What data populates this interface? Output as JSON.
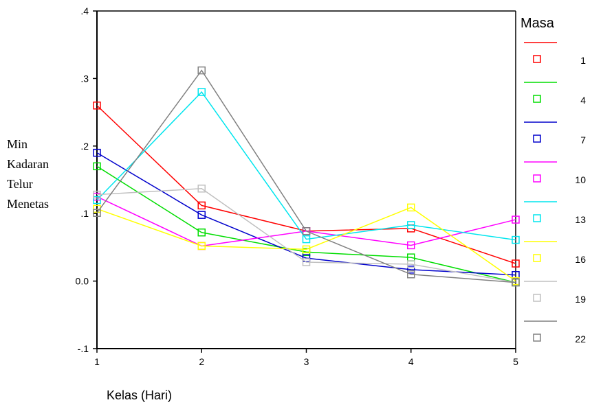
{
  "chart_data": {
    "type": "line",
    "title": "",
    "xlabel": "Kelas  (Hari)",
    "ylabel_lines": [
      "Min",
      "Kadaran",
      "Telur",
      "Menetas"
    ],
    "x": [
      1,
      2,
      3,
      4,
      5
    ],
    "x_ticks": [
      "1",
      "2",
      "3",
      "4",
      "5"
    ],
    "ylim": [
      -0.1,
      0.4
    ],
    "y_ticks": [
      {
        "value": 0.4,
        "label": ".4"
      },
      {
        "value": 0.3,
        "label": ".3"
      },
      {
        "value": 0.2,
        "label": ".2"
      },
      {
        "value": 0.1,
        "label": ".1"
      },
      {
        "value": 0.0,
        "label": "0.0"
      },
      {
        "value": -0.1,
        "label": "-.1"
      }
    ],
    "grid": false,
    "legend": {
      "title": "Masa",
      "position": "right"
    },
    "series": [
      {
        "name": "1",
        "color": "#ff0000",
        "values": [
          0.26,
          0.112,
          0.074,
          0.078,
          0.026
        ]
      },
      {
        "name": "4",
        "color": "#00dd00",
        "values": [
          0.17,
          0.072,
          0.043,
          0.035,
          -0.002
        ]
      },
      {
        "name": "7",
        "color": "#0000cc",
        "values": [
          0.19,
          0.098,
          0.034,
          0.017,
          0.009
        ]
      },
      {
        "name": "10",
        "color": "#ff00ff",
        "values": [
          0.125,
          0.052,
          0.074,
          0.053,
          0.091
        ]
      },
      {
        "name": "13",
        "color": "#00e5ee",
        "values": [
          0.12,
          0.28,
          0.062,
          0.083,
          0.061
        ]
      },
      {
        "name": "16",
        "color": "#ffff00",
        "values": [
          0.107,
          0.052,
          0.047,
          0.109,
          0.0
        ]
      },
      {
        "name": "19",
        "color": "#c0c0c0",
        "values": [
          0.128,
          0.137,
          0.028,
          0.025,
          -0.002
        ]
      },
      {
        "name": "22",
        "color": "#808080",
        "values": [
          0.101,
          0.312,
          0.074,
          0.01,
          -0.002
        ]
      }
    ]
  }
}
